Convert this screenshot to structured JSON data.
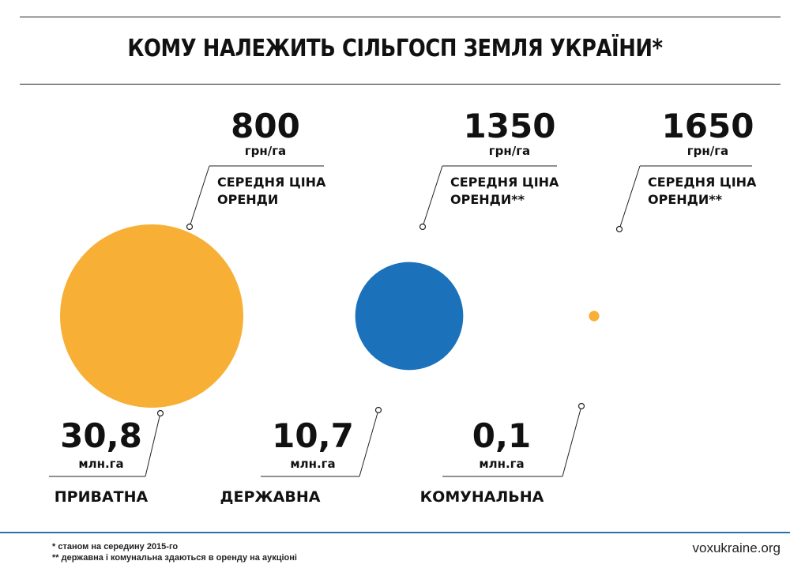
{
  "title": "КОМУ НАЛЕЖИТЬ СІЛЬГОСП ЗЕМЛЯ УКРАЇНИ*",
  "colors": {
    "orange": "#F7B035",
    "blue": "#1B72BB"
  },
  "chart_data": {
    "type": "bubble",
    "title": "КОМУ НАЛЕЖИТЬ СІЛЬГОСП ЗЕМЛЯ УКРАЇНИ*",
    "categories": [
      "ПРИВАТНА",
      "ДЕРЖАВНА",
      "КОМУНАЛЬНА"
    ],
    "series": [
      {
        "values": [
          30.8,
          10.7,
          0.1
        ],
        "labels": [
          "30,8",
          "10,7",
          "0,1"
        ],
        "unit": "млн.га"
      },
      {
        "values": [
          800,
          1350,
          1650
        ],
        "labels": [
          "800",
          "1350",
          "1650"
        ],
        "unit": "грн/га",
        "descriptions": [
          [
            "СЕРЕДНЯ ЦІНА",
            "ОРЕНДИ"
          ],
          [
            "СЕРЕДНЯ ЦІНА",
            "ОРЕНДИ**"
          ],
          [
            "СЕРЕДНЯ ЦІНА",
            "ОРЕНДИ**"
          ]
        ]
      }
    ],
    "bubble_colors": [
      "#F7B035",
      "#1B72BB",
      "#F7B035"
    ]
  },
  "footer": {
    "note1": "* станом на середину 2015-го",
    "note2": "** державна і комунальна здаються в оренду на аукціоні",
    "site": "voxukraine.org"
  }
}
